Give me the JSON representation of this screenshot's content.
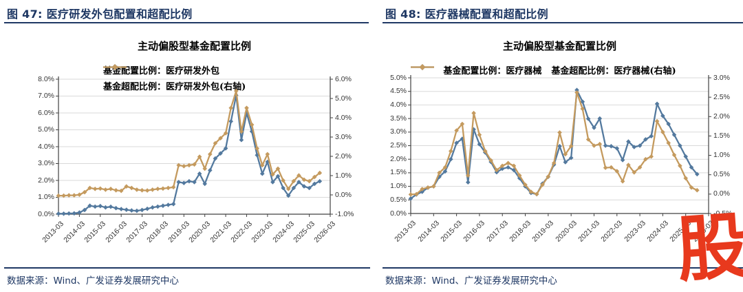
{
  "branding": {
    "watermark_char": "股",
    "watermark_color": "#E8391D"
  },
  "colors": {
    "header_navy": "#1F3864",
    "series_blue": "#53799E",
    "series_gold": "#C49A5E",
    "gridline": "#D9D9D9",
    "axis": "#404040"
  },
  "charts": [
    {
      "header": "图 47:  医疗研发外包配置和超配比例",
      "source": "数据来源：Wind、广发证券发展研究中心",
      "chart_data": {
        "type": "line",
        "title": "主动偏股型基金配置比例",
        "legend_layout": "stacked",
        "grid": true,
        "marker": "diamond",
        "x_axis": {
          "start": "2013-03",
          "frequency": "quarterly",
          "tick_labels": [
            "2013-03",
            "2014-03",
            "2015-03",
            "2016-03",
            "2017-03",
            "2018-03",
            "2019-03",
            "2020-03",
            "2021-03",
            "2022-03",
            "2023-03",
            "2024-03",
            "2025-03",
            "2026-03"
          ],
          "points_per_tick": 4
        },
        "left_axis": {
          "min": 0,
          "max": 8,
          "step": 1,
          "suffix": "%"
        },
        "right_axis": {
          "min": -1,
          "max": 6,
          "step": 1,
          "suffix": "%"
        },
        "series": [
          {
            "name": "基金配置比例：医疗研发外包",
            "axis": "left",
            "color": "#53799E",
            "values": [
              0.03,
              0.03,
              0.04,
              0.05,
              0.1,
              0.25,
              0.5,
              0.45,
              0.48,
              0.4,
              0.44,
              0.36,
              0.3,
              0.26,
              0.22,
              0.2,
              0.25,
              0.32,
              0.4,
              0.45,
              0.5,
              0.55,
              0.6,
              1.9,
              1.85,
              1.95,
              1.9,
              2.4,
              1.8,
              2.6,
              3.3,
              3.6,
              3.9,
              5.5,
              7.05,
              4.4,
              6.0,
              4.9,
              3.5,
              2.4,
              3.1,
              1.9,
              2.25,
              1.55,
              1.1,
              1.55,
              1.9,
              1.65,
              1.55,
              1.8,
              1.95
            ]
          },
          {
            "name": "基金超配比例：医疗研发外包(右轴)",
            "axis": "right",
            "color": "#C49A5E",
            "values": [
              -0.04,
              -0.04,
              -0.02,
              -0.02,
              0.01,
              0.14,
              0.36,
              0.31,
              0.33,
              0.27,
              0.31,
              0.24,
              0.21,
              0.44,
              0.36,
              0.27,
              0.24,
              0.23,
              0.27,
              0.31,
              0.33,
              0.36,
              0.4,
              1.54,
              1.49,
              1.54,
              1.58,
              1.98,
              1.36,
              2.11,
              2.68,
              2.94,
              3.2,
              4.51,
              5.39,
              3.29,
              4.51,
              3.64,
              2.41,
              1.54,
              2.11,
              1.06,
              1.36,
              0.75,
              0.31,
              0.71,
              1.01,
              0.79,
              0.71,
              0.93,
              1.14
            ]
          }
        ]
      }
    },
    {
      "header": "图 48:  医疗器械配置和超配比例",
      "source": "数据来源：Wind、广发证券发展研究中心",
      "chart_data": {
        "type": "line",
        "title": "主动偏股型基金配置比例",
        "legend_layout": "inline",
        "grid": true,
        "marker": "diamond",
        "x_axis": {
          "start": "2013-03",
          "frequency": "quarterly",
          "tick_labels": [
            "2013-03",
            "2014-03",
            "2015-03",
            "2016-03",
            "2017-03",
            "2018-03",
            "2019-03",
            "2020-03",
            "2021-03",
            "2022-03",
            "2023-03",
            "2024-03",
            "2025-03",
            "2026-03"
          ],
          "points_per_tick": 4
        },
        "left_axis": {
          "min": 0,
          "max": 5,
          "step": 0.5,
          "suffix": "%"
        },
        "right_axis": {
          "min": -0.5,
          "max": 3,
          "step": 0.5,
          "suffix": "%"
        },
        "series": [
          {
            "name": "基金配置比例：医疗器械",
            "axis": "left",
            "color": "#53799E",
            "values": [
              0.55,
              0.7,
              0.8,
              0.95,
              1.0,
              1.35,
              1.55,
              2.0,
              2.6,
              2.75,
              1.15,
              3.1,
              2.55,
              2.25,
              1.9,
              1.52,
              1.65,
              1.7,
              1.6,
              1.3,
              1.0,
              0.76,
              0.71,
              1.1,
              1.35,
              1.8,
              2.48,
              1.89,
              2.05,
              4.55,
              4.12,
              3.49,
              3.16,
              3.5,
              2.5,
              2.48,
              2.4,
              1.97,
              2.65,
              2.45,
              2.5,
              2.73,
              2.85,
              4.04,
              3.6,
              3.3,
              2.9,
              2.5,
              2.1,
              1.7,
              1.45
            ]
          },
          {
            "name": "基金超配比例：医疗器械(右轴)",
            "axis": "right",
            "color": "#C49A5E",
            "values": [
              -0.01,
              0.0,
              0.13,
              0.17,
              0.2,
              0.55,
              0.69,
              1.11,
              1.64,
              1.81,
              0.48,
              2.09,
              1.53,
              1.11,
              0.87,
              0.62,
              0.73,
              0.8,
              0.73,
              0.48,
              0.24,
              0.06,
              0.0,
              0.24,
              0.45,
              0.8,
              1.59,
              1.03,
              1.24,
              2.62,
              2.2,
              1.41,
              1.25,
              1.29,
              0.68,
              0.69,
              0.59,
              0.33,
              0.75,
              0.56,
              0.69,
              0.9,
              0.97,
              1.88,
              1.6,
              1.32,
              1.01,
              0.73,
              0.41,
              0.17,
              0.1
            ]
          }
        ]
      }
    }
  ]
}
